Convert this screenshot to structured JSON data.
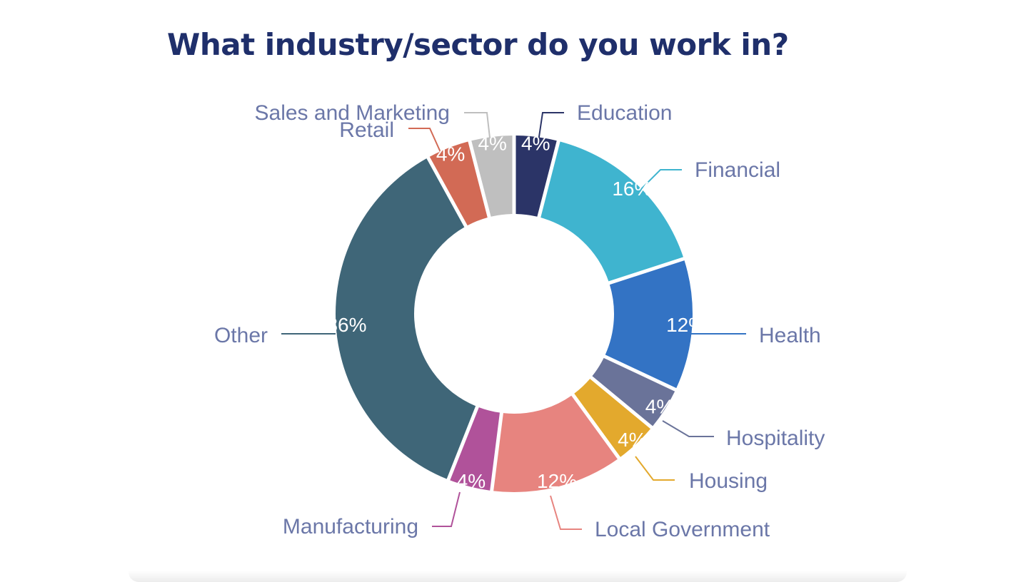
{
  "chart_data": {
    "type": "pie",
    "title": "What industry/sector do you work in?",
    "donut": true,
    "slices": [
      {
        "name": "Education",
        "value": 4,
        "label": "4%",
        "color": "#2b3467"
      },
      {
        "name": "Financial",
        "value": 16,
        "label": "16%",
        "color": "#3fb4cf"
      },
      {
        "name": "Health",
        "value": 12,
        "label": "12%",
        "color": "#3373c4"
      },
      {
        "name": "Hospitality",
        "value": 4,
        "label": "4%",
        "color": "#6a7399"
      },
      {
        "name": "Housing",
        "value": 4,
        "label": "4%",
        "color": "#e3a92d"
      },
      {
        "name": "Local Government",
        "value": 12,
        "label": "12%",
        "color": "#e7847f"
      },
      {
        "name": "Manufacturing",
        "value": 4,
        "label": "4%",
        "color": "#b0529a"
      },
      {
        "name": "Other",
        "value": 36,
        "label": "36%",
        "color": "#3f6678"
      },
      {
        "name": "Retail",
        "value": 4,
        "label": "4%",
        "color": "#d26a55"
      },
      {
        "name": "Sales and Marketing",
        "value": 4,
        "label": "4%",
        "color": "#bfbfbf"
      }
    ]
  }
}
